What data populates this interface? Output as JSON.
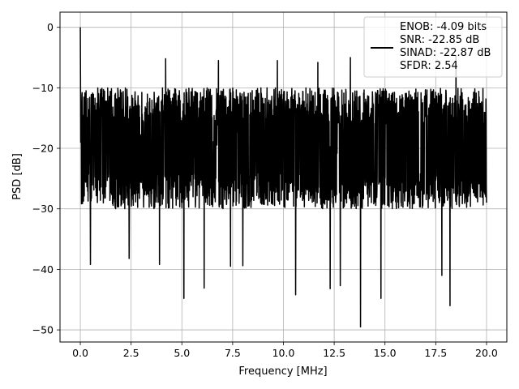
{
  "chart_data": {
    "type": "line",
    "title": "",
    "xlabel": "Frequency [MHz]",
    "ylabel": "PSD [dB]",
    "xlim": [
      -1.0,
      21.0
    ],
    "ylim": [
      -52.0,
      2.5
    ],
    "xticks": [
      0.0,
      2.5,
      5.0,
      7.5,
      10.0,
      12.5,
      15.0,
      17.5,
      20.0
    ],
    "xtick_labels": [
      "0.0",
      "2.5",
      "5.0",
      "7.5",
      "10.0",
      "12.5",
      "15.0",
      "17.5",
      "20.0"
    ],
    "yticks": [
      0,
      -10,
      -20,
      -30,
      -40,
      -50
    ],
    "ytick_labels": [
      "0",
      "−10",
      "−20",
      "−30",
      "−40",
      "−50"
    ],
    "grid": true,
    "legend_position": "top-right",
    "series": [
      {
        "name": "ENOB: -4.09 bits\nSNR: -22.85 dB\nSINAD: -22.87 dB\nSFDR: 2.54",
        "color": "#000000",
        "x_range": [
          0.0,
          20.0
        ],
        "description_points": 2048,
        "envelope": {
          "start_value": 0.0,
          "typical_upper": -10.0,
          "typical_lower": -30.0,
          "mean": -20.0
        },
        "notable_dips": [
          {
            "x": 0.5,
            "y": -39.2
          },
          {
            "x": 2.4,
            "y": -38.2
          },
          {
            "x": 3.9,
            "y": -39.2
          },
          {
            "x": 5.1,
            "y": -44.8
          },
          {
            "x": 6.1,
            "y": -43.1
          },
          {
            "x": 7.4,
            "y": -39.5
          },
          {
            "x": 8.0,
            "y": -39.4
          },
          {
            "x": 10.6,
            "y": -44.2
          },
          {
            "x": 12.3,
            "y": -43.2
          },
          {
            "x": 12.8,
            "y": -42.7
          },
          {
            "x": 13.8,
            "y": -49.5
          },
          {
            "x": 14.8,
            "y": -44.8
          },
          {
            "x": 17.8,
            "y": -41.0
          },
          {
            "x": 18.2,
            "y": -46.0
          }
        ],
        "notable_peaks": [
          {
            "x": 0.0,
            "y": 0.0
          },
          {
            "x": 4.2,
            "y": -5.2
          },
          {
            "x": 6.8,
            "y": -5.5
          },
          {
            "x": 9.7,
            "y": -5.5
          },
          {
            "x": 11.7,
            "y": -5.8
          },
          {
            "x": 13.3,
            "y": -5.0
          },
          {
            "x": 18.5,
            "y": -4.8
          }
        ]
      }
    ],
    "legend_lines": [
      "ENOB: -4.09 bits",
      "SNR: -22.85 dB",
      "SINAD: -22.87 dB",
      "SFDR: 2.54"
    ]
  }
}
